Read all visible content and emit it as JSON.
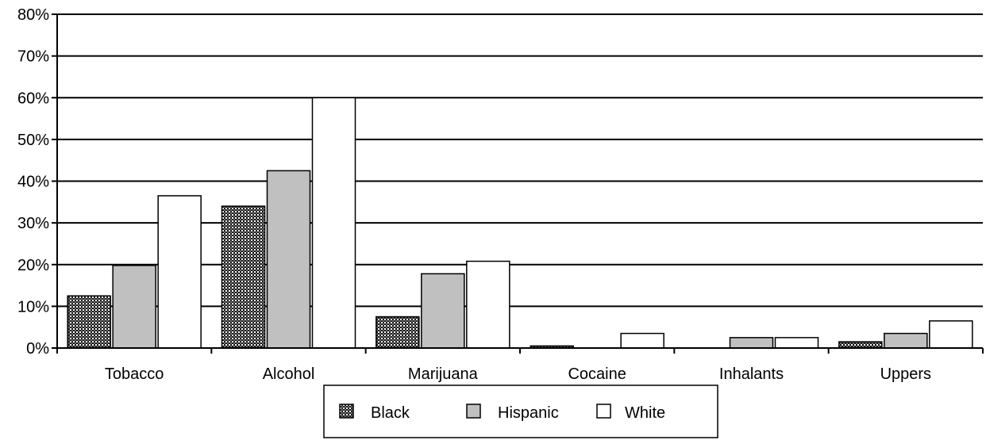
{
  "chart_data": {
    "type": "bar",
    "categories": [
      "Tobacco",
      "Alcohol",
      "Marijuana",
      "Cocaine",
      "Inhalants",
      "Uppers"
    ],
    "series": [
      {
        "name": "Black",
        "values": [
          12.5,
          34,
          7.5,
          0.5,
          0,
          1.5
        ]
      },
      {
        "name": "Hispanic",
        "values": [
          19.8,
          42.5,
          17.8,
          0,
          2.5,
          3.5
        ]
      },
      {
        "name": "White",
        "values": [
          36.5,
          60,
          20.8,
          3.5,
          2.5,
          6.5
        ]
      }
    ],
    "y_ticks": [
      "0%",
      "10%",
      "20%",
      "30%",
      "40%",
      "50%",
      "60%",
      "70%",
      "80%"
    ],
    "ylim": [
      0,
      80
    ],
    "grid": true,
    "legend_position": "bottom-center",
    "colors": {
      "Black": "#3a3a3a",
      "Hispanic": "#c0c0c0",
      "White": "#ffffff"
    }
  }
}
